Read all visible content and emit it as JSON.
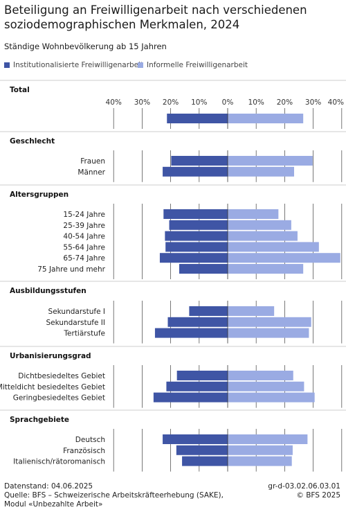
{
  "title": "Beteiligung an Freiwilligenarbeit nach verschiedenen soziodemographischen Merkmalen, 2024",
  "subtitle": "Ständige Wohnbevölkerung ab 15 Jahren",
  "colors": {
    "institutional": "#3f55a5",
    "informal": "#9aabe3",
    "gridline": "#333333"
  },
  "chart_data": {
    "type": "bar",
    "orientation": "horizontal-diverging",
    "series": [
      {
        "name": "Institutionalisierte Freiwilligenarbeit",
        "direction": "left"
      },
      {
        "name": "Informelle Freiwilligenarbeit",
        "direction": "right"
      }
    ],
    "tick_labels": [
      "40%",
      "30%",
      "20%",
      "10%",
      "0%",
      "10%",
      "20%",
      "30%",
      "40%"
    ],
    "xlim": [
      -40,
      40
    ],
    "groups": [
      {
        "name": "Total",
        "items": [
          {
            "label": "",
            "institutional": 21.3,
            "informal": 26.5
          }
        ]
      },
      {
        "name": "Geschlecht",
        "items": [
          {
            "label": "Frauen",
            "institutional": 19.8,
            "informal": 29.8
          },
          {
            "label": "Männer",
            "institutional": 22.8,
            "informal": 23.3
          }
        ]
      },
      {
        "name": "Altersgruppen",
        "items": [
          {
            "label": "15-24 Jahre",
            "institutional": 22.5,
            "informal": 17.8
          },
          {
            "label": "25-39 Jahre",
            "institutional": 20.5,
            "informal": 22.3
          },
          {
            "label": "40-54 Jahre",
            "institutional": 22.0,
            "informal": 24.5
          },
          {
            "label": "55-64 Jahre",
            "institutional": 21.8,
            "informal": 32.0
          },
          {
            "label": "65-74 Jahre",
            "institutional": 23.8,
            "informal": 39.5
          },
          {
            "label": "75 Jahre und mehr",
            "institutional": 17.0,
            "informal": 26.5
          }
        ]
      },
      {
        "name": "Ausbildungsstufen",
        "items": [
          {
            "label": "Sekundarstufe I",
            "institutional": 13.5,
            "informal": 16.3
          },
          {
            "label": "Sekundarstufe II",
            "institutional": 21.0,
            "informal": 29.3
          },
          {
            "label": "Tertiärstufe",
            "institutional": 25.5,
            "informal": 28.5
          }
        ]
      },
      {
        "name": "Urbanisierungsgrad",
        "items": [
          {
            "label": "Dichtbesiedeltes Gebiet",
            "institutional": 17.8,
            "informal": 23.0
          },
          {
            "label": "Mitteldicht besiedeltes Gebiet",
            "institutional": 21.5,
            "informal": 26.8
          },
          {
            "label": "Geringbesiedeltes Gebiet",
            "institutional": 26.0,
            "informal": 30.5
          }
        ]
      },
      {
        "name": "Sprachgebiete",
        "items": [
          {
            "label": "Deutsch",
            "institutional": 22.8,
            "informal": 28.0
          },
          {
            "label": "Französisch",
            "institutional": 18.0,
            "informal": 22.8
          },
          {
            "label": "Italienisch/rätoromanisch",
            "institutional": 16.0,
            "informal": 22.5
          }
        ]
      }
    ]
  },
  "footer": {
    "date": "Datenstand: 04.06.2025",
    "source": "Quelle: BFS – Schweizerische Arbeitskräfteerhebung (SAKE), Modul «Unbezahlte Arbeit»",
    "code": "gr-d-03.02.06.03.01",
    "copyright": "© BFS 2025"
  }
}
